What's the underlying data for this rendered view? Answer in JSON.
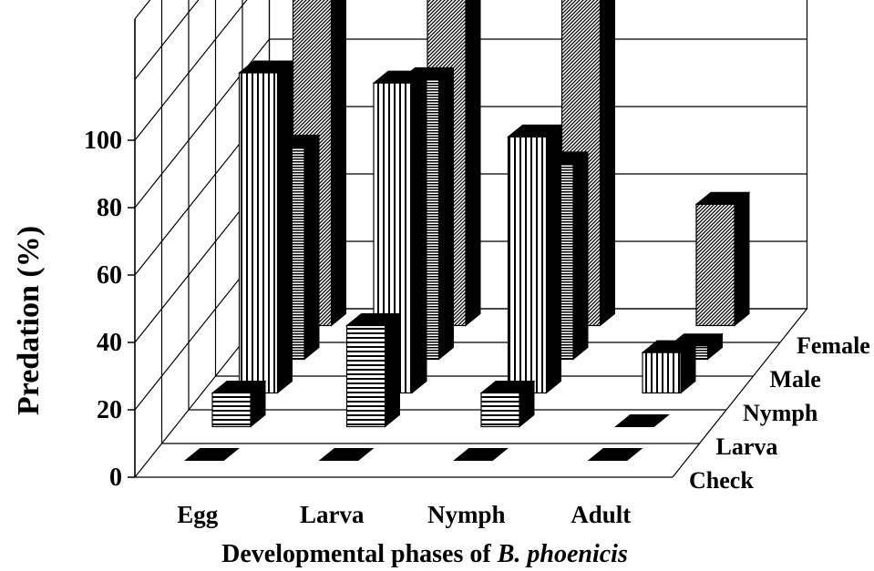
{
  "chart_data": {
    "type": "bar",
    "subtype": "3d-grouped",
    "xlabel_prefix": "Developmental phases of ",
    "xlabel_italic": "B. phoenicis",
    "ylabel": "Predation (%)",
    "categories": [
      "Egg",
      "Larva",
      "Nymph",
      "Adult"
    ],
    "yticks": [
      "0",
      "20",
      "40",
      "60",
      "80",
      "100"
    ],
    "ylim": [
      0,
      100
    ],
    "grid": true,
    "series": [
      {
        "name": "Check",
        "values": [
          0,
          0,
          0,
          0
        ],
        "fill": "solid-black"
      },
      {
        "name": "Larva",
        "values": [
          10,
          30,
          10,
          0
        ],
        "fill": "horizontal-lines"
      },
      {
        "name": "Nymph",
        "values": [
          95,
          92,
          76,
          12
        ],
        "fill": "vertical-lines"
      },
      {
        "name": "Male",
        "values": [
          63,
          83,
          58,
          4
        ],
        "fill": "horizontal-lines-dense"
      },
      {
        "name": "Female",
        "values": [
          100,
          100,
          100,
          36
        ],
        "fill": "diagonal-hatch"
      }
    ]
  }
}
